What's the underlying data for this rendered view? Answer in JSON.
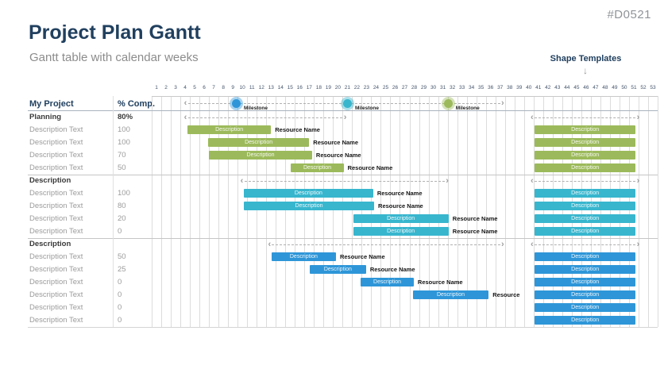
{
  "page": {
    "code": "#D0521",
    "title": "Project Plan Gantt",
    "subtitle": "Gantt table with calendar weeks",
    "down_arrow": "↓"
  },
  "table": {
    "name_header": "My Project",
    "pct_header": "% Comp."
  },
  "colors": {
    "green": "#9cba5b",
    "teal": "#38b6ce",
    "blue": "#2e96d8",
    "halos": {
      "green": "rgba(156,186,91,0.42)",
      "teal": "rgba(56,182,206,0.42)",
      "blue": "rgba(46,150,216,0.42)"
    },
    "title_text": "#21405f",
    "grid": "#dcdcdc"
  },
  "chart_data": {
    "type": "bar",
    "variant": "gantt",
    "x_axis": {
      "unit": "calendar week",
      "ticks": [
        1,
        2,
        3,
        4,
        5,
        6,
        7,
        8,
        9,
        10,
        11,
        12,
        13,
        14,
        15,
        16,
        17,
        18,
        19,
        20,
        21,
        22,
        23,
        24,
        25,
        26,
        27,
        28,
        29,
        30,
        31,
        32,
        33,
        34,
        35,
        36,
        37,
        38,
        39,
        40,
        41,
        42,
        43,
        44,
        45,
        46,
        47,
        48,
        49,
        50,
        51,
        52,
        53
      ]
    },
    "milestones": {
      "arrow": {
        "from": 4.8,
        "to": 37.5
      },
      "items": [
        {
          "at": 9.9,
          "label": "Milestone",
          "color": "blue"
        },
        {
          "at": 21.55,
          "label": "Milestone",
          "color": "teal"
        },
        {
          "at": 32.1,
          "label": "Milestone",
          "color": "green"
        }
      ]
    },
    "shape_templates": {
      "label": "Shape Templates",
      "from": 41.1,
      "to": 51.7,
      "bar_label": "Description"
    },
    "groups": [
      {
        "label": "Planning",
        "value": "80%",
        "color": "green",
        "arrow": {
          "from": 4.8,
          "to": 21.0
        },
        "rows": [
          {
            "label": "Description Text",
            "value": "100",
            "bar": {
              "from": 4.75,
              "to": 13.5
            },
            "bar_label": "Description",
            "resource": "Resource Name"
          },
          {
            "label": "Description Text",
            "value": "100",
            "bar": {
              "from": 6.9,
              "to": 17.5
            },
            "bar_label": "Description",
            "resource": "Resource Name"
          },
          {
            "label": "Description Text",
            "value": "70",
            "bar": {
              "from": 7.0,
              "to": 17.8
            },
            "bar_label": "Description",
            "resource": "Resource Name"
          },
          {
            "label": "Description Text",
            "value": "50",
            "bar": {
              "from": 15.6,
              "to": 21.1
            },
            "bar_label": "Description",
            "resource": "Resource Name"
          }
        ]
      },
      {
        "label": "Description",
        "value": "",
        "color": "teal",
        "arrow": {
          "from": 10.7,
          "to": 31.7
        },
        "rows": [
          {
            "label": "Description Text",
            "value": "100",
            "bar": {
              "from": 10.65,
              "to": 24.2
            },
            "bar_label": "Description",
            "resource": "Resource Name"
          },
          {
            "label": "Description Text",
            "value": "80",
            "bar": {
              "from": 10.65,
              "to": 24.3
            },
            "bar_label": "Description",
            "resource": "Resource Name"
          },
          {
            "label": "Description Text",
            "value": "20",
            "bar": {
              "from": 22.1,
              "to": 32.1
            },
            "bar_label": "Description",
            "resource": "Resource Name"
          },
          {
            "label": "Description Text",
            "value": "0",
            "bar": {
              "from": 22.1,
              "to": 32.1
            },
            "bar_label": "Description",
            "resource": "Resource Name"
          }
        ]
      },
      {
        "label": "Description",
        "value": "",
        "color": "blue",
        "arrow": {
          "from": 13.6,
          "to": 37.5
        },
        "rows": [
          {
            "label": "Description Text",
            "value": "50",
            "bar": {
              "from": 13.55,
              "to": 20.3
            },
            "bar_label": "Description",
            "resource": "Resource Name"
          },
          {
            "label": "Description Text",
            "value": "25",
            "bar": {
              "from": 17.55,
              "to": 23.45
            },
            "bar_label": "Description",
            "resource": "Resource Name"
          },
          {
            "label": "Description Text",
            "value": "0",
            "bar": {
              "from": 22.9,
              "to": 28.45
            },
            "bar_label": "Description",
            "resource": "Resource Name"
          },
          {
            "label": "Description Text",
            "value": "0",
            "bar": {
              "from": 28.35,
              "to": 36.3
            },
            "bar_label": "Description",
            "resource": "Resource"
          },
          {
            "label": "Description Text",
            "value": "0",
            "bar": null,
            "bar_label": "",
            "resource": ""
          },
          {
            "label": "Description Text",
            "value": "0",
            "bar": null,
            "bar_label": "",
            "resource": ""
          }
        ]
      }
    ]
  }
}
